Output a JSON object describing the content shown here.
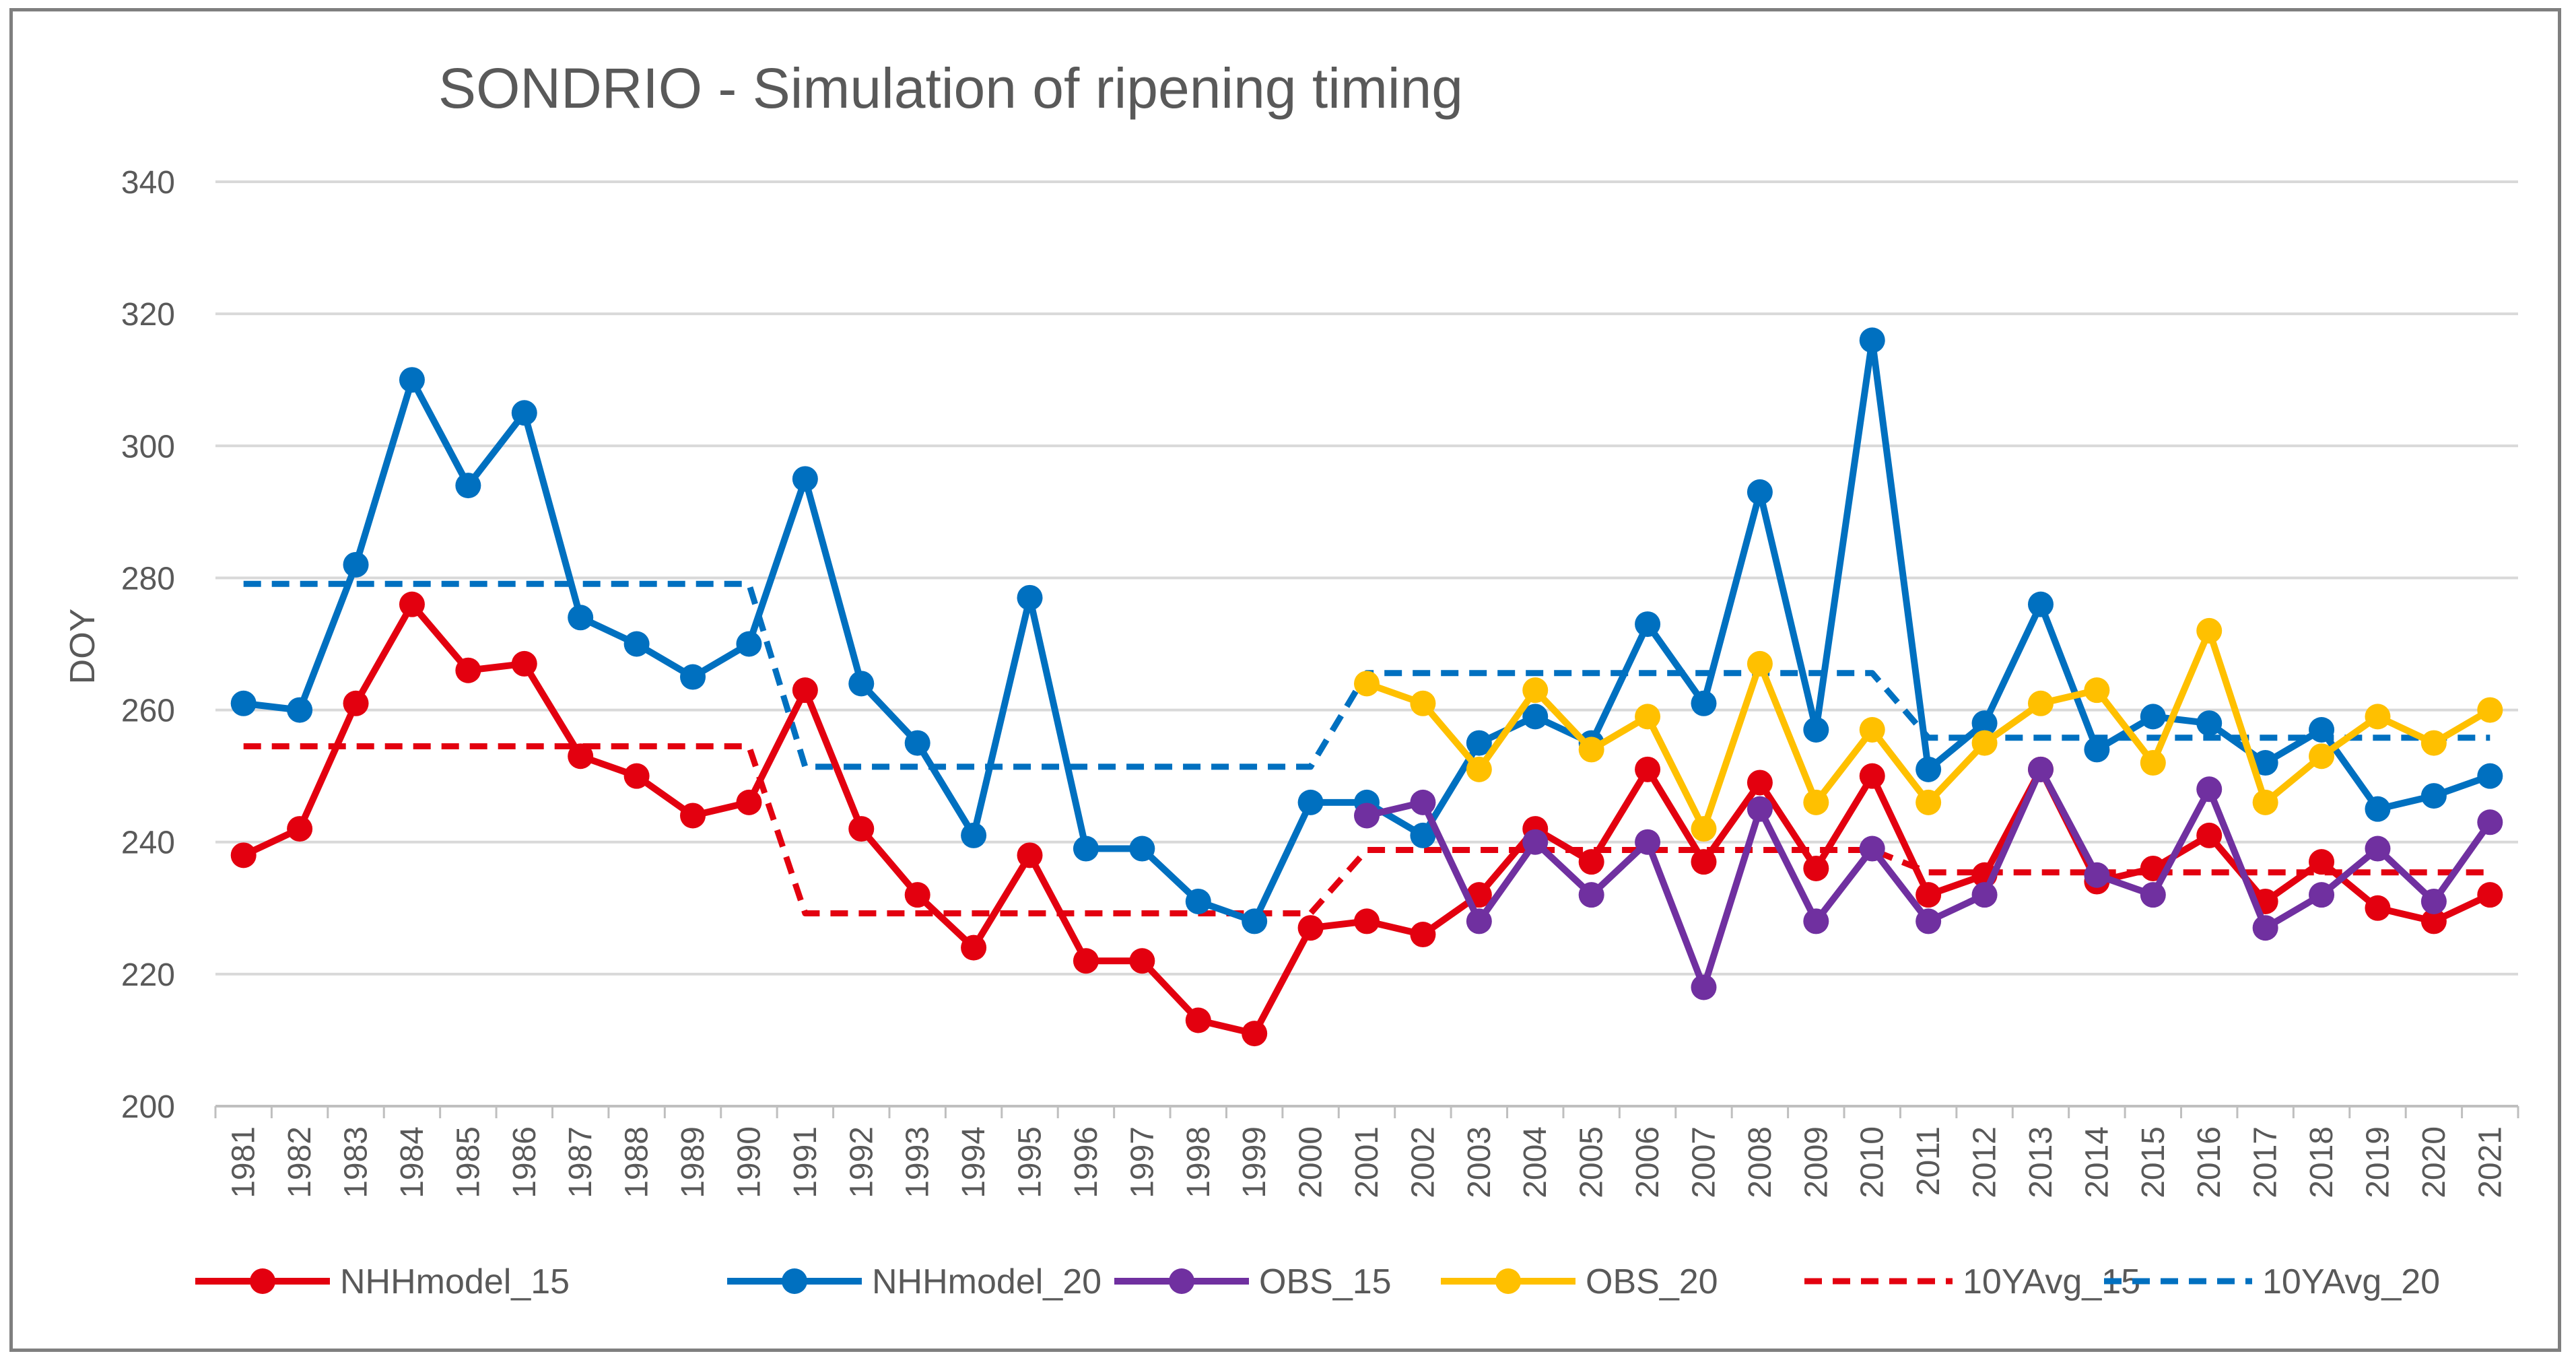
{
  "chart_data": {
    "type": "line",
    "title": "SONDRIO - Simulation of ripening timing",
    "xlabel": "",
    "ylabel": "DOY",
    "ylim": [
      200,
      340
    ],
    "yticks": [
      200,
      220,
      240,
      260,
      280,
      300,
      320,
      340
    ],
    "grid": true,
    "legend_position": "bottom",
    "categories": [
      "1981",
      "1982",
      "1983",
      "1984",
      "1985",
      "1986",
      "1987",
      "1988",
      "1989",
      "1990",
      "1991",
      "1992",
      "1993",
      "1994",
      "1995",
      "1996",
      "1997",
      "1998",
      "1999",
      "2000",
      "2001",
      "2002",
      "2003",
      "2004",
      "2005",
      "2006",
      "2007",
      "2008",
      "2009",
      "2010",
      "2011",
      "2012",
      "2013",
      "2014",
      "2015",
      "2016",
      "2017",
      "2018",
      "2019",
      "2020",
      "2021"
    ],
    "series": [
      {
        "name": "NHHmodel_15",
        "color": "#e3000f",
        "style": "solid",
        "markers": true,
        "values": [
          238,
          242,
          261,
          276,
          266,
          267,
          253,
          250,
          244,
          246,
          263,
          242,
          232,
          224,
          238,
          222,
          222,
          213,
          211,
          227,
          228,
          226,
          232,
          242,
          237,
          251,
          237,
          249,
          236,
          250,
          232,
          235,
          251,
          234,
          236,
          241,
          231,
          237,
          230,
          228,
          232
        ]
      },
      {
        "name": "NHHmodel_20",
        "color": "#0070c0",
        "style": "solid",
        "markers": true,
        "values": [
          261,
          260,
          282,
          310,
          294,
          305,
          274,
          270,
          265,
          270,
          295,
          264,
          255,
          241,
          277,
          239,
          239,
          231,
          228,
          246,
          246,
          241,
          255,
          259,
          255,
          273,
          261,
          293,
          257,
          316,
          251,
          258,
          276,
          254,
          259,
          258,
          252,
          257,
          245,
          247,
          250
        ]
      },
      {
        "name": "OBS_15",
        "color": "#7030a0",
        "style": "solid",
        "markers": true,
        "values": [
          null,
          null,
          null,
          null,
          null,
          null,
          null,
          null,
          null,
          null,
          null,
          null,
          null,
          null,
          null,
          null,
          null,
          null,
          null,
          null,
          244,
          246,
          228,
          240,
          232,
          240,
          218,
          245,
          228,
          239,
          228,
          232,
          251,
          235,
          232,
          248,
          227,
          232,
          239,
          231,
          243
        ]
      },
      {
        "name": "OBS_20",
        "color": "#ffc000",
        "style": "solid",
        "markers": true,
        "values": [
          null,
          null,
          null,
          null,
          null,
          null,
          null,
          null,
          null,
          null,
          null,
          null,
          null,
          null,
          null,
          null,
          null,
          null,
          null,
          null,
          264,
          261,
          251,
          263,
          254,
          259,
          242,
          267,
          246,
          257,
          246,
          255,
          261,
          263,
          252,
          272,
          246,
          253,
          259,
          255,
          260
        ]
      },
      {
        "name": "10YAvg_15",
        "color": "#e3000f",
        "style": "dashed",
        "markers": false,
        "values": [
          254.5,
          254.5,
          254.5,
          254.5,
          254.5,
          254.5,
          254.5,
          254.5,
          254.5,
          254.5,
          229.2,
          229.2,
          229.2,
          229.2,
          229.2,
          229.2,
          229.2,
          229.2,
          229.2,
          229.2,
          238.8,
          238.8,
          238.8,
          238.8,
          238.8,
          238.8,
          238.8,
          238.8,
          238.8,
          238.8,
          235.4,
          235.4,
          235.4,
          235.4,
          235.4,
          235.4,
          235.4,
          235.4,
          235.4,
          235.4,
          235.4
        ]
      },
      {
        "name": "10YAvg_20",
        "color": "#0070c0",
        "style": "dashed",
        "markers": false,
        "values": [
          279.1,
          279.1,
          279.1,
          279.1,
          279.1,
          279.1,
          279.1,
          279.1,
          279.1,
          279.1,
          251.4,
          251.4,
          251.4,
          251.4,
          251.4,
          251.4,
          251.4,
          251.4,
          251.4,
          251.4,
          265.6,
          265.6,
          265.6,
          265.6,
          265.6,
          265.6,
          265.6,
          265.6,
          265.6,
          265.6,
          255.8,
          255.8,
          255.8,
          255.8,
          255.8,
          255.8,
          255.8,
          255.8,
          255.8,
          255.8,
          255.8
        ]
      }
    ]
  }
}
